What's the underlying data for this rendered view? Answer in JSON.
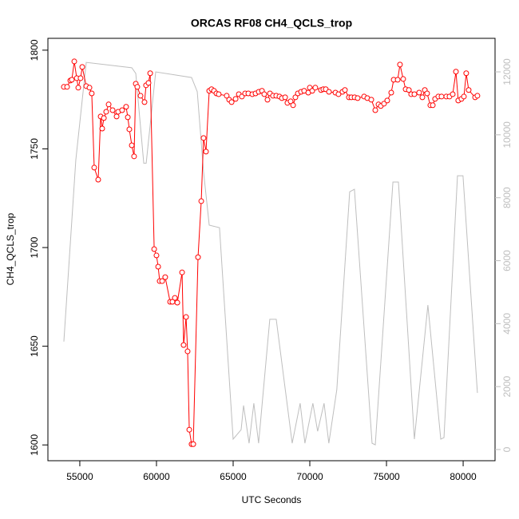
{
  "chart_data": {
    "type": "line",
    "title": "ORCAS RF08 CH4_QCLS_trop",
    "xlabel": "UTC Seconds",
    "ylabel": "CH4_QCLS_trop",
    "xlim": [
      52920,
      82080
    ],
    "ylim": [
      1592,
      1806
    ],
    "y2lim": [
      -355,
      13066
    ],
    "xticks": [
      55000,
      60000,
      65000,
      70000,
      75000,
      80000
    ],
    "yticks": [
      1600,
      1650,
      1700,
      1750,
      1800
    ],
    "y2ticks": [
      0,
      2000,
      4000,
      6000,
      8000,
      10000,
      12000
    ],
    "series": [
      {
        "color": "#bebebe",
        "axis": "y2",
        "style": "line",
        "x": [
          53960,
          54740,
          55420,
          58390,
          58650,
          59170,
          59330,
          59950,
          62290,
          62660,
          63070,
          63440,
          64110,
          65000,
          65520,
          65680,
          66040,
          66350,
          66660,
          67390,
          67810,
          68850,
          69370,
          69680,
          70200,
          70510,
          70930,
          71240,
          71760,
          72600,
          72910,
          74060,
          74270,
          75420,
          75780,
          76820,
          77700,
          78540,
          78750,
          79630,
          79990,
          80930
        ],
        "values": [
          3430,
          9200,
          12300,
          12130,
          11950,
          9100,
          9100,
          12000,
          11820,
          11370,
          8830,
          7130,
          7050,
          330,
          630,
          1400,
          200,
          1470,
          200,
          4140,
          4140,
          200,
          1470,
          200,
          1470,
          580,
          1470,
          200,
          1900,
          8190,
          8270,
          200,
          150,
          8500,
          8500,
          330,
          4590,
          330,
          380,
          8700,
          8700,
          1800
        ]
      },
      {
        "color": "#ff0000",
        "style": "points-lines",
        "x": [
          53960,
          54170,
          54380,
          54480,
          54640,
          54800,
          54900,
          55050,
          55160,
          55420,
          55630,
          55780,
          55940,
          56200,
          56360,
          56460,
          56570,
          56720,
          56880,
          57140,
          57400,
          57500,
          57760,
          58020,
          58130,
          58230,
          58390,
          58540,
          58650,
          58750,
          58960,
          59220,
          59320,
          59480,
          59590,
          59850,
          60000,
          60110,
          60210,
          60370,
          60570,
          60890,
          61040,
          61200,
          61360,
          61670,
          61770,
          61930,
          62030,
          62140,
          62290,
          62400,
          62710,
          62920,
          63070,
          63230,
          63440,
          63590,
          63750,
          63910,
          64060,
          64580,
          64740,
          64900,
          65160,
          65370,
          65570,
          65780,
          65990,
          66250,
          66460,
          66670,
          66880,
          67030,
          67240,
          67400,
          67600,
          67810,
          68020,
          68180,
          68390,
          68540,
          68750,
          68910,
          69060,
          69220,
          69430,
          69630,
          69900,
          70000,
          70160,
          70360,
          70730,
          70880,
          71040,
          71250,
          71670,
          71870,
          72130,
          72290,
          72550,
          72710,
          72920,
          73120,
          73540,
          73750,
          74010,
          74270,
          74480,
          74630,
          74840,
          75050,
          75310,
          75470,
          75730,
          75880,
          76090,
          76250,
          76460,
          76610,
          76820,
          77130,
          77340,
          77500,
          77650,
          77860,
          78020,
          78170,
          78380,
          78590,
          78900,
          79110,
          79320,
          79530,
          79680,
          79890,
          80050,
          80200,
          80360,
          80780,
          80930
        ],
        "values": [
          1781.4,
          1781.4,
          1784.6,
          1785.0,
          1794.3,
          1785.8,
          1781.0,
          1785.8,
          1791.5,
          1781.8,
          1781.0,
          1778.1,
          1740.5,
          1734.4,
          1766.4,
          1760.3,
          1765.6,
          1768.8,
          1772.5,
          1769.6,
          1766.4,
          1768.8,
          1769.6,
          1771.3,
          1766.0,
          1759.9,
          1751.8,
          1746.2,
          1783.0,
          1781.4,
          1776.9,
          1773.7,
          1782.2,
          1783.4,
          1788.3,
          1699.2,
          1696.0,
          1690.3,
          1683.0,
          1683.0,
          1685.0,
          1672.5,
          1672.5,
          1674.5,
          1672.1,
          1687.4,
          1650.6,
          1664.8,
          1647.4,
          1607.7,
          1600.4,
          1600.4,
          1695.1,
          1723.5,
          1755.5,
          1748.6,
          1779.4,
          1780.2,
          1779.4,
          1778.1,
          1777.7,
          1776.9,
          1774.9,
          1773.7,
          1775.3,
          1777.7,
          1776.5,
          1778.1,
          1778.1,
          1777.7,
          1778.1,
          1778.9,
          1779.4,
          1777.7,
          1774.9,
          1778.1,
          1776.9,
          1776.9,
          1776.5,
          1775.7,
          1776.1,
          1773.3,
          1774.1,
          1772.1,
          1776.1,
          1778.1,
          1778.9,
          1779.4,
          1778.5,
          1781.0,
          1779.4,
          1781.0,
          1779.8,
          1780.2,
          1780.2,
          1778.9,
          1778.5,
          1777.7,
          1778.9,
          1779.8,
          1776.1,
          1776.1,
          1776.1,
          1775.7,
          1776.5,
          1775.7,
          1774.9,
          1769.6,
          1772.5,
          1771.7,
          1772.9,
          1774.5,
          1778.5,
          1785.0,
          1785.0,
          1792.7,
          1785.4,
          1780.2,
          1779.8,
          1777.7,
          1777.7,
          1778.5,
          1776.1,
          1779.8,
          1778.1,
          1772.1,
          1772.1,
          1775.3,
          1776.5,
          1776.5,
          1776.5,
          1776.5,
          1777.7,
          1789.1,
          1774.5,
          1775.3,
          1776.5,
          1788.3,
          1779.8,
          1776.1,
          1776.9
        ]
      }
    ]
  }
}
